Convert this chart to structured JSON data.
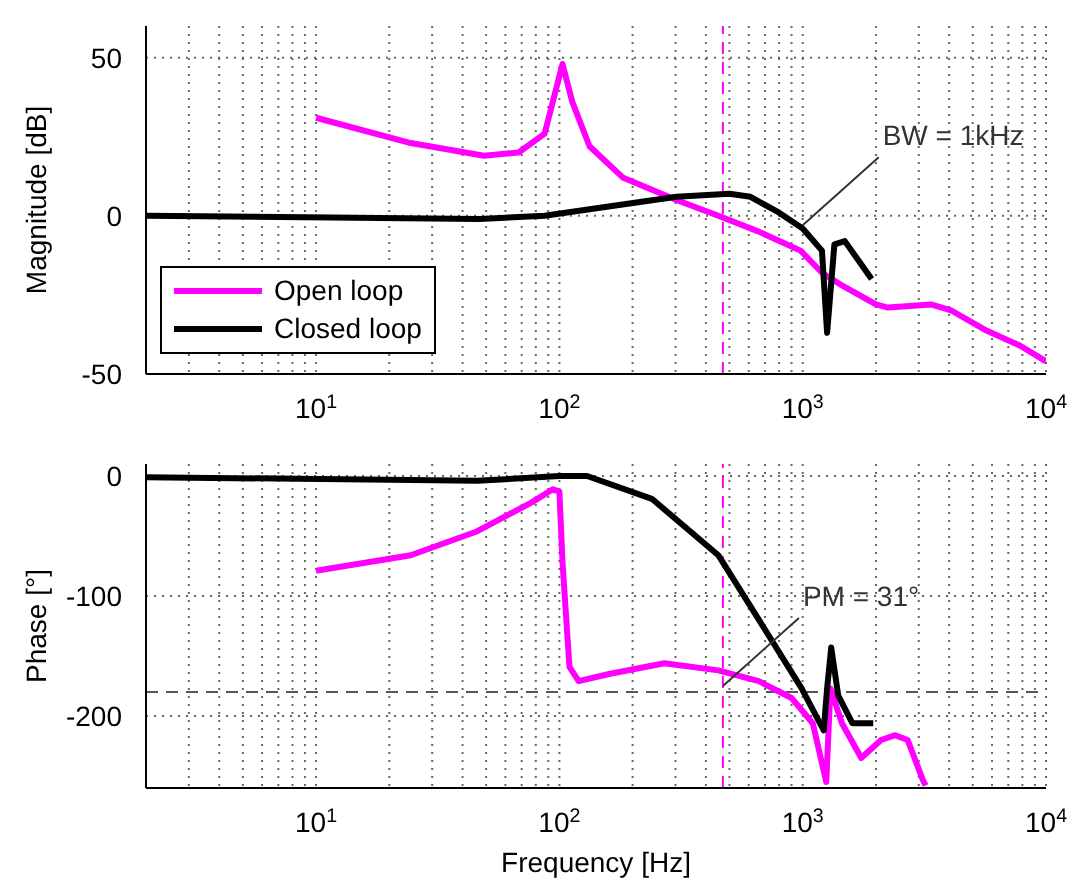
{
  "chart_data": [
    {
      "type": "line",
      "ylabel": "Magnitude [dB]",
      "xlim": [
        2,
        10000
      ],
      "ylim": [
        -50,
        60
      ],
      "log": "x",
      "grid": true,
      "legend": "bottom left",
      "line_style": "solid",
      "marker": "none",
      "xticks": [
        {
          "value": 2,
          "label": null
        },
        {
          "value": 3,
          "label": null
        },
        {
          "value": 4,
          "label": null
        },
        {
          "value": 5,
          "label": null
        },
        {
          "value": 6,
          "label": null
        },
        {
          "value": 7,
          "label": null
        },
        {
          "value": 8,
          "label": null
        },
        {
          "value": 9,
          "label": null
        },
        {
          "value": 10,
          "label": "10$^{1}$"
        },
        {
          "value": 20,
          "label": null
        },
        {
          "value": 30,
          "label": null
        },
        {
          "value": 40,
          "label": null
        },
        {
          "value": 50,
          "label": null
        },
        {
          "value": 60,
          "label": null
        },
        {
          "value": 70,
          "label": null
        },
        {
          "value": 80,
          "label": null
        },
        {
          "value": 90,
          "label": null
        },
        {
          "value": 100,
          "label": "10$^{2}$"
        },
        {
          "value": 200,
          "label": null
        },
        {
          "value": 300,
          "label": null
        },
        {
          "value": 400,
          "label": null
        },
        {
          "value": 500,
          "label": null
        },
        {
          "value": 600,
          "label": null
        },
        {
          "value": 700,
          "label": null
        },
        {
          "value": 800,
          "label": null
        },
        {
          "value": 900,
          "label": null
        },
        {
          "value": 1000,
          "label": "10$^{3}$"
        },
        {
          "value": 2000,
          "label": null
        },
        {
          "value": 3000,
          "label": null
        },
        {
          "value": 4000,
          "label": null
        },
        {
          "value": 5000,
          "label": null
        },
        {
          "value": 6000,
          "label": null
        },
        {
          "value": 7000,
          "label": null
        },
        {
          "value": 8000,
          "label": null
        },
        {
          "value": 9000,
          "label": null
        },
        {
          "value": 10000,
          "label": "10$^{4}$"
        }
      ],
      "yticks": [
        -50,
        0,
        50
      ],
      "series": [
        {
          "name": "Open loop",
          "color": "#ff00ff",
          "x": [
            10,
            24.5,
            49,
            68,
            87,
            103,
            113,
            133,
            183,
            303,
            450,
            660,
            980,
            1200,
            1450,
            2000,
            2240,
            3370,
            4100,
            5600,
            7800,
            10000
          ],
          "values": [
            31,
            23,
            19,
            20,
            26,
            48,
            36,
            22,
            12,
            5,
            0,
            -5,
            -11,
            -18,
            -22,
            -28,
            -29,
            -28,
            -30,
            -36,
            -41,
            -46
          ]
        },
        {
          "name": "Closed loop",
          "color": "#000000",
          "x": [
            2,
            47,
            87,
            162,
            303,
            500,
            610,
            800,
            1000,
            1200,
            1260,
            1350,
            1490,
            1920
          ],
          "values": [
            0,
            -1,
            0,
            3,
            6,
            7,
            6,
            1,
            -4,
            -11,
            -37,
            -9,
            -8,
            -20
          ]
        }
      ],
      "ref_lines": [
        {
          "axis": "x",
          "value": 470,
          "color": "#ff00ff",
          "line_style": "dashed"
        }
      ],
      "annotations": [
        {
          "text": "BW = 1kHz",
          "x": 1000,
          "y": -3
        }
      ]
    },
    {
      "type": "line",
      "ylabel": "Phase [°]",
      "xlabel": "Frequency [Hz]",
      "xlim": [
        2,
        10000
      ],
      "ylim": [
        -260,
        10
      ],
      "log": "x",
      "grid": true,
      "line_style": "solid",
      "marker": "none",
      "xticks": [
        {
          "value": 2,
          "label": null
        },
        {
          "value": 3,
          "label": null
        },
        {
          "value": 4,
          "label": null
        },
        {
          "value": 5,
          "label": null
        },
        {
          "value": 6,
          "label": null
        },
        {
          "value": 7,
          "label": null
        },
        {
          "value": 8,
          "label": null
        },
        {
          "value": 9,
          "label": null
        },
        {
          "value": 10,
          "label": "10$^{1}$"
        },
        {
          "value": 20,
          "label": null
        },
        {
          "value": 30,
          "label": null
        },
        {
          "value": 40,
          "label": null
        },
        {
          "value": 50,
          "label": null
        },
        {
          "value": 60,
          "label": null
        },
        {
          "value": 70,
          "label": null
        },
        {
          "value": 80,
          "label": null
        },
        {
          "value": 90,
          "label": null
        },
        {
          "value": 100,
          "label": "10$^{2}$"
        },
        {
          "value": 200,
          "label": null
        },
        {
          "value": 300,
          "label": null
        },
        {
          "value": 400,
          "label": null
        },
        {
          "value": 500,
          "label": null
        },
        {
          "value": 600,
          "label": null
        },
        {
          "value": 700,
          "label": null
        },
        {
          "value": 800,
          "label": null
        },
        {
          "value": 900,
          "label": null
        },
        {
          "value": 1000,
          "label": "10$^{3}$"
        },
        {
          "value": 2000,
          "label": null
        },
        {
          "value": 3000,
          "label": null
        },
        {
          "value": 4000,
          "label": null
        },
        {
          "value": 5000,
          "label": null
        },
        {
          "value": 6000,
          "label": null
        },
        {
          "value": 7000,
          "label": null
        },
        {
          "value": 8000,
          "label": null
        },
        {
          "value": 9000,
          "label": null
        },
        {
          "value": 10000,
          "label": "10$^{4}$"
        }
      ],
      "yticks": [
        -200,
        -100,
        0
      ],
      "series": [
        {
          "color": "#ff00ff",
          "x": [
            10,
            24.5,
            46,
            77,
            94,
            100,
            103,
            110,
            120,
            160,
            270,
            450,
            660,
            900,
            1100,
            1250,
            1300,
            1450,
            1740,
            2100,
            2400,
            2700,
            3100,
            3200
          ],
          "values": [
            -79,
            -66,
            -46,
            -22,
            -11,
            -13,
            -72,
            -159,
            -171,
            -165,
            -156,
            -162,
            -171,
            -185,
            -206,
            -255,
            -177,
            -206,
            -235,
            -220,
            -216,
            -220,
            -252,
            -258
          ]
        },
        {
          "color": "#000000",
          "x": [
            2,
            46,
            100,
            130,
            240,
            450,
            710,
            990,
            1220,
            1260,
            1310,
            1400,
            1600,
            1950
          ],
          "values": [
            -1,
            -4,
            0,
            0,
            -19,
            -66,
            -130,
            -177,
            -212,
            -177,
            -143,
            -183,
            -206,
            -206
          ]
        }
      ],
      "ref_lines": [
        {
          "axis": "x",
          "value": 470,
          "color": "#ff00ff",
          "line_style": "dashed"
        },
        {
          "axis": "y",
          "value": -180,
          "color": "#555555",
          "line_style": "dashed"
        }
      ],
      "annotations": [
        {
          "text": "PM = 31°",
          "x": 470,
          "y": -175
        }
      ]
    }
  ]
}
